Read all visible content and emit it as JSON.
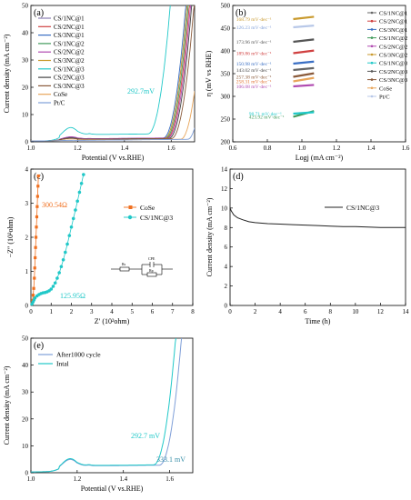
{
  "chart_data": [
    {
      "type": "line",
      "panel": "(a)",
      "xlabel": "Potential (V vs.RHE)",
      "ylabel": "Current density (mA cm⁻²)",
      "xlim": [
        1.0,
        1.7
      ],
      "ylim": [
        0,
        50
      ],
      "xticks": [
        1.0,
        1.2,
        1.4,
        1.6
      ],
      "yticks": [
        0,
        10,
        20,
        30,
        40,
        50
      ],
      "legend_position": "top-left",
      "annotation": "292.7mV",
      "series": [
        {
          "name": "CS/1NC@1",
          "color": "#8a7fb5",
          "onset": 1.57,
          "bump": 1.2
        },
        {
          "name": "CS/2NC@1",
          "color": "#d04040",
          "onset": 1.58,
          "bump": 1.1
        },
        {
          "name": "CS/3NC@1",
          "color": "#3a6fc4",
          "onset": 1.565,
          "bump": 1.3
        },
        {
          "name": "CS/1NC@2",
          "color": "#3f9a5a",
          "onset": 1.575,
          "bump": 1.0
        },
        {
          "name": "CS/2NC@2",
          "color": "#b04ab0",
          "onset": 1.585,
          "bump": 1.4
        },
        {
          "name": "CS/3NC@2",
          "color": "#c99a2e",
          "onset": 1.57,
          "bump": 0.9
        },
        {
          "name": "CS/1NC@3",
          "color": "#20c8c8",
          "onset": 1.5,
          "bump": 4.8
        },
        {
          "name": "CS/2NC@3",
          "color": "#444444",
          "onset": 1.59,
          "bump": 1.0
        },
        {
          "name": "CS/3NC@3",
          "color": "#8a5a3a",
          "onset": 1.6,
          "bump": 0.8
        },
        {
          "name": "CoSe",
          "color": "#e8a55a",
          "onset": 1.64,
          "bump": 0.2
        },
        {
          "name": "Pt/C",
          "color": "#7f9fd8",
          "onset": 1.67,
          "bump": 0.1
        }
      ]
    },
    {
      "type": "line",
      "panel": "(b)",
      "xlabel": "Logj (mA  cm⁻²)",
      "ylabel": "η (mV vs RHE)",
      "xlim": [
        0.6,
        1.6
      ],
      "ylim": [
        200,
        500
      ],
      "xticks": [
        0.6,
        0.8,
        1.0,
        1.2,
        1.4,
        1.6
      ],
      "yticks": [
        200,
        250,
        300,
        350,
        400,
        450,
        500
      ],
      "legend_position": "top-right",
      "series": [
        {
          "name": "CS/1NC@1",
          "color": "#666666",
          "label": "143.02 mV·dec⁻¹",
          "label_color": "#444444",
          "eta0": 358,
          "slope": 143
        },
        {
          "name": "CS/2NC@1",
          "color": "#d04040",
          "label": "189.86 mV·dec⁻¹",
          "label_color": "#d04040",
          "eta0": 395,
          "slope": 190
        },
        {
          "name": "CS/3NC@1",
          "color": "#3a6fc4",
          "label": "150.98 mV·dec⁻¹",
          "label_color": "#3a6fc4",
          "eta0": 372,
          "slope": 151
        },
        {
          "name": "CS/1NC@2",
          "color": "#3f9a5a",
          "label": "423.92 mV·dec⁻¹",
          "label_color": "#3f9a5a",
          "eta0": 255,
          "slope": 424
        },
        {
          "name": "CS/2NC@2",
          "color": "#b04ab0",
          "label": "106.08 mV·dec⁻¹",
          "label_color": "#b04ab0",
          "eta0": 322,
          "slope": 106
        },
        {
          "name": "CS/3NC@2",
          "color": "#c99a2e",
          "label": "168.79 mV·dec⁻¹",
          "label_color": "#c99a2e",
          "eta0": 470,
          "slope": 169
        },
        {
          "name": "CS/1NC@3",
          "color": "#20c8c8",
          "label": "98.71 mV·dec⁻¹",
          "label_color": "#20c8c8",
          "eta0": 262,
          "slope": 99
        },
        {
          "name": "CS/2NC@3",
          "color": "#555555",
          "label": "173.96 mV·dec⁻¹",
          "label_color": "#555555",
          "eta0": 420,
          "slope": 174
        },
        {
          "name": "CS/3NC@3",
          "color": "#8a5a3a",
          "label": "257.38 mV·dec⁻¹",
          "label_color": "#8a5a3a",
          "eta0": 343,
          "slope": 257
        },
        {
          "name": "CoSe",
          "color": "#e8a55a",
          "label": "258.31 mV·dec⁻¹",
          "label_color": "#e07030",
          "eta0": 333,
          "slope": 258
        },
        {
          "name": "Pt/C",
          "color": "#b8c8e8",
          "label": "126.23 mV·dec⁻¹",
          "label_color": "#7f9fd8",
          "eta0": 452,
          "slope": 126
        }
      ]
    },
    {
      "type": "scatter",
      "panel": "(c)",
      "xlabel": "Z′ (10²ohm)",
      "ylabel": "−Z″ (10²ohm)",
      "xlim": [
        0,
        8
      ],
      "ylim": [
        0,
        4
      ],
      "xticks": [
        0,
        1,
        2,
        3,
        4,
        5,
        6,
        7,
        8
      ],
      "yticks": [
        0,
        1,
        2,
        3,
        4
      ],
      "legend_position": "top-right",
      "annotations": [
        "300.54Ω",
        "125.95Ω"
      ],
      "circuit_labels": [
        "Rs",
        "CPE",
        "Rp"
      ],
      "series": [
        {
          "name": "CoSe",
          "color": "#f07020",
          "marker": "square",
          "points": [
            [
              0.05,
              0.05
            ],
            [
              0.08,
              0.15
            ],
            [
              0.11,
              0.3
            ],
            [
              0.14,
              0.5
            ],
            [
              0.17,
              0.8
            ],
            [
              0.19,
              1.1
            ],
            [
              0.21,
              1.4
            ],
            [
              0.23,
              1.7
            ],
            [
              0.25,
              2.0
            ],
            [
              0.27,
              2.3
            ],
            [
              0.29,
              2.6
            ],
            [
              0.31,
              2.9
            ],
            [
              0.33,
              3.2
            ],
            [
              0.35,
              3.5
            ],
            [
              0.37,
              3.8
            ]
          ]
        },
        {
          "name": "CS/1NC@3",
          "color": "#20c8c8",
          "marker": "circle",
          "points": [
            [
              0.05,
              0.04
            ],
            [
              0.1,
              0.1
            ],
            [
              0.15,
              0.16
            ],
            [
              0.2,
              0.22
            ],
            [
              0.3,
              0.28
            ],
            [
              0.4,
              0.32
            ],
            [
              0.5,
              0.35
            ],
            [
              0.6,
              0.37
            ],
            [
              0.7,
              0.38
            ],
            [
              0.8,
              0.4
            ],
            [
              0.9,
              0.43
            ],
            [
              1.0,
              0.48
            ],
            [
              1.1,
              0.56
            ],
            [
              1.2,
              0.66
            ],
            [
              1.3,
              0.8
            ],
            [
              1.4,
              0.96
            ],
            [
              1.5,
              1.14
            ],
            [
              1.6,
              1.34
            ],
            [
              1.7,
              1.56
            ],
            [
              1.8,
              1.8
            ],
            [
              1.9,
              2.05
            ],
            [
              2.0,
              2.3
            ],
            [
              2.1,
              2.55
            ],
            [
              2.2,
              2.8
            ],
            [
              2.3,
              3.06
            ],
            [
              2.4,
              3.32
            ],
            [
              2.5,
              3.58
            ],
            [
              2.6,
              3.84
            ]
          ]
        }
      ]
    },
    {
      "type": "line",
      "panel": "(d)",
      "xlabel": "Time (h)",
      "ylabel": "Current density (mA cm⁻²)",
      "xlim": [
        0,
        14
      ],
      "ylim": [
        0,
        14
      ],
      "xticks": [
        0,
        2,
        4,
        6,
        8,
        10,
        12,
        14
      ],
      "yticks": [
        0,
        2,
        4,
        6,
        8,
        10,
        12,
        14
      ],
      "legend_position": "top-right",
      "series": [
        {
          "name": "CS/1NC@3",
          "color": "#222222",
          "x": [
            0,
            0.1,
            0.3,
            0.6,
            1,
            1.5,
            2,
            3,
            4,
            5,
            6,
            7,
            8,
            9,
            10,
            11,
            12,
            13,
            14
          ],
          "y": [
            10.0,
            9.7,
            9.3,
            9.0,
            8.8,
            8.6,
            8.5,
            8.4,
            8.35,
            8.3,
            8.25,
            8.2,
            8.15,
            8.1,
            8.1,
            8.05,
            8.0,
            8.0,
            8.0
          ]
        }
      ]
    },
    {
      "type": "line",
      "panel": "(e)",
      "xlabel": "Potential (V vs.RHE)",
      "ylabel": "Current density (mA cm⁻²)",
      "xlim": [
        1.0,
        1.7
      ],
      "ylim": [
        0,
        50
      ],
      "xticks": [
        1.0,
        1.2,
        1.4,
        1.6
      ],
      "yticks": [
        0,
        10,
        20,
        30,
        40,
        50
      ],
      "legend_position": "top-left",
      "annotations": [
        "292.7 mV",
        "333.1 mV"
      ],
      "series": [
        {
          "name": "After1000 cycle",
          "color": "#7f9fd8",
          "onset": 1.555,
          "bump": 4.5
        },
        {
          "name": "Intal",
          "color": "#20c8c8",
          "onset": 1.53,
          "bump": 4.8
        }
      ]
    }
  ]
}
